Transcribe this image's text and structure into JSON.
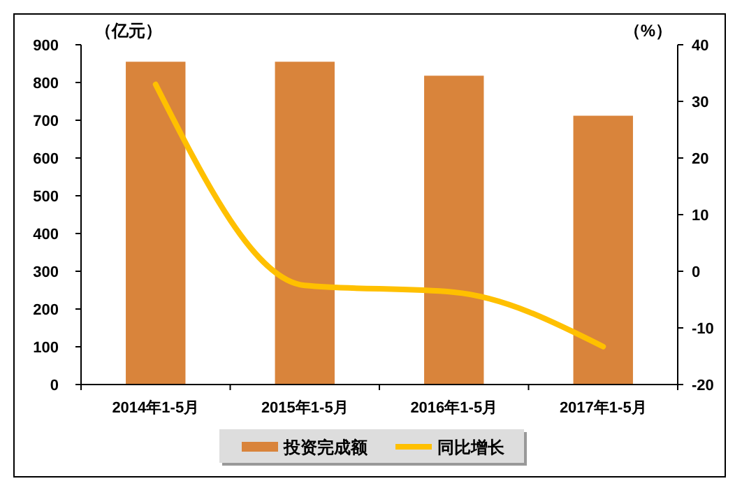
{
  "chart_data": {
    "type": "bar",
    "ylabel": "（亿元）",
    "y2label": "（%）",
    "categories": [
      "2014年1-5月",
      "2015年1-5月",
      "2016年1-5月",
      "2017年1-5月"
    ],
    "series": [
      {
        "name": "投资完成额",
        "color": "#d9843b",
        "values": [
          855,
          855,
          818,
          712
        ]
      },
      {
        "name": "同比增长",
        "type": "line",
        "axis": "y2",
        "color": "#ffc000",
        "values": [
          33,
          -2.5,
          -3.7,
          -13.3
        ]
      }
    ],
    "ylim": [
      0,
      900
    ],
    "yticks": [
      0,
      100,
      200,
      300,
      400,
      500,
      600,
      700,
      800,
      900
    ],
    "y2lim": [
      -20,
      40
    ],
    "y2ticks": [
      -20,
      -10,
      0,
      10,
      20,
      30,
      40
    ],
    "legend": "bottom",
    "grid": false
  }
}
